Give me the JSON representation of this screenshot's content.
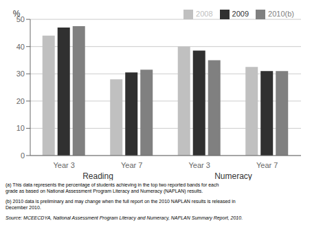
{
  "chart_data": {
    "type": "bar",
    "categories": [
      "Year 3",
      "Year 7",
      "Year 3",
      "Year 7"
    ],
    "group_labels": [
      "Reading",
      "Numeracy"
    ],
    "series": [
      {
        "name": "2008",
        "color": "#c0c0c0",
        "values": [
          44,
          28,
          40,
          32.5
        ]
      },
      {
        "name": "2009",
        "color": "#303030",
        "values": [
          47,
          30.5,
          38.5,
          31
        ]
      },
      {
        "name": "2010(b)",
        "color": "#808080",
        "values": [
          47.5,
          31.5,
          35,
          31
        ]
      }
    ],
    "ylabel": "%",
    "ylim": [
      0,
      50
    ],
    "yticks": [
      0,
      10,
      20,
      30,
      40,
      50
    ],
    "grid": true,
    "legend": "upper right",
    "footnotes": [
      "(a) This data represents the percentage of students achieving in the top two reported bands for each\ngrade as based on National Assessment Program Literacy and Numeracy (NAPLAN) results.",
      "(b) 2010 data is preliminary and may change when the full report on the 2010 NAPLAN results is released in\nDecember 2010."
    ],
    "source": "Source: MCEECDYA, National Assessment Program Literacy and Numeracy, NAPLAN Summary Report, 2010."
  }
}
